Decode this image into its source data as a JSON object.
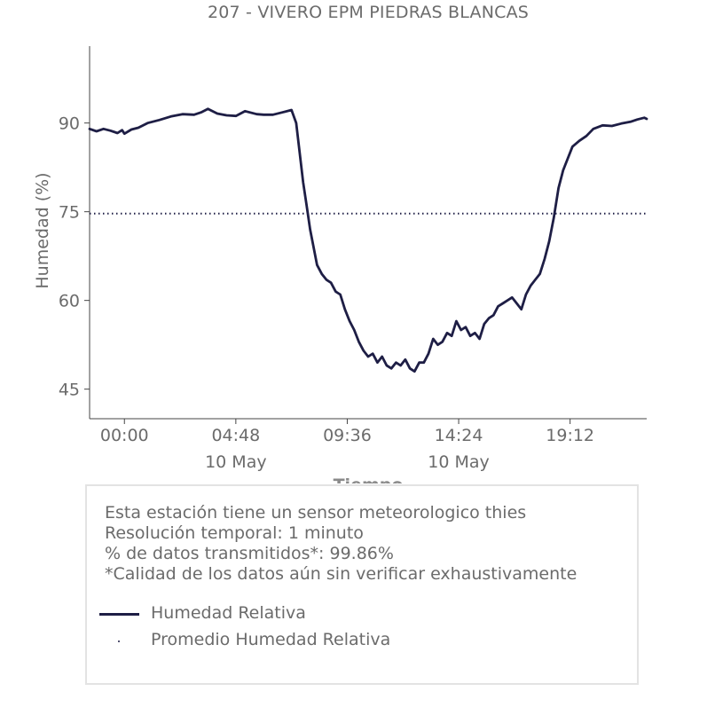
{
  "chart_data": {
    "type": "line",
    "title": "207 - VIVERO EPM PIEDRAS BLANCAS",
    "xlabel": "Tiempo",
    "ylabel": "Humedad (%)",
    "ylim": [
      40,
      103
    ],
    "xlim_hours": [
      -1.5,
      22.5
    ],
    "x_ticks": [
      {
        "label": "00:00",
        "date": ""
      },
      {
        "label": "04:48",
        "date": "10 May"
      },
      {
        "label": "09:36",
        "date": ""
      },
      {
        "label": "14:24",
        "date": "10 May"
      },
      {
        "label": "19:12",
        "date": ""
      }
    ],
    "y_ticks": [
      45,
      60,
      75,
      90
    ],
    "series": [
      {
        "name": "Humedad Relativa",
        "color": "#1e1e45",
        "style": "solid",
        "x": [
          -1.5,
          -1.2,
          -0.9,
          -0.6,
          -0.3,
          -0.1,
          0.0,
          0.3,
          0.6,
          1.0,
          1.5,
          2.0,
          2.5,
          3.0,
          3.3,
          3.6,
          4.0,
          4.4,
          4.8,
          5.2,
          5.7,
          6.0,
          6.4,
          6.8,
          7.2,
          7.4,
          7.55,
          7.7,
          7.85,
          8.0,
          8.15,
          8.3,
          8.5,
          8.7,
          8.9,
          9.1,
          9.3,
          9.5,
          9.7,
          9.9,
          10.1,
          10.3,
          10.5,
          10.7,
          10.9,
          11.1,
          11.3,
          11.5,
          11.7,
          11.9,
          12.1,
          12.3,
          12.5,
          12.7,
          12.9,
          13.1,
          13.3,
          13.5,
          13.7,
          13.9,
          14.1,
          14.3,
          14.5,
          14.7,
          14.9,
          15.1,
          15.3,
          15.5,
          15.7,
          15.9,
          16.1,
          16.3,
          16.5,
          16.7,
          16.9,
          17.1,
          17.3,
          17.5,
          17.7,
          17.9,
          18.1,
          18.3,
          18.5,
          18.7,
          18.9,
          19.1,
          19.3,
          19.6,
          19.9,
          20.2,
          20.6,
          21.0,
          21.4,
          21.8,
          22.1,
          22.4,
          22.5
        ],
        "values": [
          89.0,
          88.6,
          89.0,
          88.7,
          88.3,
          88.8,
          88.2,
          88.9,
          89.2,
          90.0,
          90.5,
          91.1,
          91.5,
          91.4,
          91.8,
          92.4,
          91.6,
          91.3,
          91.2,
          92.0,
          91.5,
          91.4,
          91.4,
          91.8,
          92.2,
          90.0,
          85.0,
          80.0,
          76.0,
          72.0,
          69.0,
          66.0,
          64.5,
          63.5,
          63.0,
          61.5,
          61.0,
          58.5,
          56.5,
          55.0,
          53.0,
          51.5,
          50.5,
          51.0,
          49.5,
          50.5,
          49.0,
          48.5,
          49.5,
          49.0,
          50.0,
          48.5,
          48.0,
          49.5,
          49.5,
          51.0,
          53.5,
          52.5,
          53.0,
          54.5,
          54.0,
          56.5,
          55.0,
          55.5,
          54.0,
          54.5,
          53.5,
          56.0,
          57.0,
          57.5,
          59.0,
          59.5,
          60.0,
          60.5,
          59.5,
          58.5,
          61.0,
          62.5,
          63.5,
          64.5,
          67.0,
          70.0,
          74.0,
          79.0,
          82.0,
          84.0,
          86.0,
          87.0,
          87.8,
          89.0,
          89.6,
          89.5,
          89.9,
          90.2,
          90.6,
          90.9,
          90.7
        ]
      },
      {
        "name": "Promedio Humedad Relativa",
        "color": "#1e1e45",
        "style": "dotted",
        "x": [
          -1.5,
          22.5
        ],
        "values": [
          74.7,
          74.7
        ]
      }
    ]
  },
  "info": {
    "line1": "Esta estación tiene un sensor meteorologico thies",
    "line2": "Resolución temporal: 1 minuto",
    "line3": "% de datos transmitidos*: 99.86%",
    "line4": "*Calidad de los datos aún sin verificar exhaustivamente"
  },
  "legend": {
    "item1": "Humedad Relativa",
    "item2": "Promedio Humedad Relativa"
  }
}
